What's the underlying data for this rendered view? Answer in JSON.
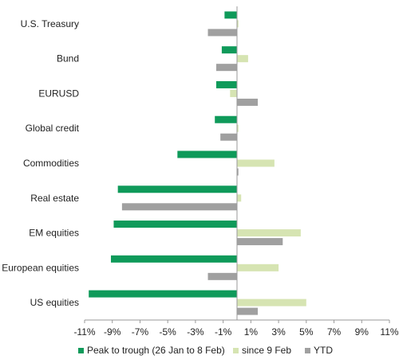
{
  "chart_data": {
    "type": "bar",
    "orientation": "horizontal",
    "title": "",
    "xlabel": "",
    "ylabel": "",
    "categories": [
      "U.S. Treasury",
      "Bund",
      "EURUSD",
      "Global credit",
      "Commodities",
      "Real estate",
      "EM equities",
      "European equities",
      "US equities"
    ],
    "series": [
      {
        "name": "Peak to trough (26 Jan to 8 Feb)",
        "color": "#0f9a5a",
        "values": [
          -0.9,
          -1.1,
          -1.5,
          -1.6,
          -4.3,
          -8.6,
          -8.9,
          -9.1,
          -10.7
        ]
      },
      {
        "name": "since 9 Feb",
        "color": "#d6e4b2",
        "values": [
          0.1,
          0.8,
          -0.5,
          0.1,
          2.7,
          0.3,
          4.6,
          3.0,
          5.0
        ]
      },
      {
        "name": "YTD",
        "color": "#a0a0a0",
        "values": [
          -2.1,
          -1.5,
          1.5,
          -1.2,
          0.1,
          -8.3,
          3.3,
          -2.1,
          1.5
        ]
      }
    ],
    "xlim": [
      -11,
      11
    ],
    "xticks": [
      "-11%",
      "-9%",
      "-7%",
      "-5%",
      "-3%",
      "-1%",
      "1%",
      "3%",
      "5%",
      "7%",
      "9%",
      "11%"
    ],
    "grid": false,
    "legend": "bottom"
  }
}
